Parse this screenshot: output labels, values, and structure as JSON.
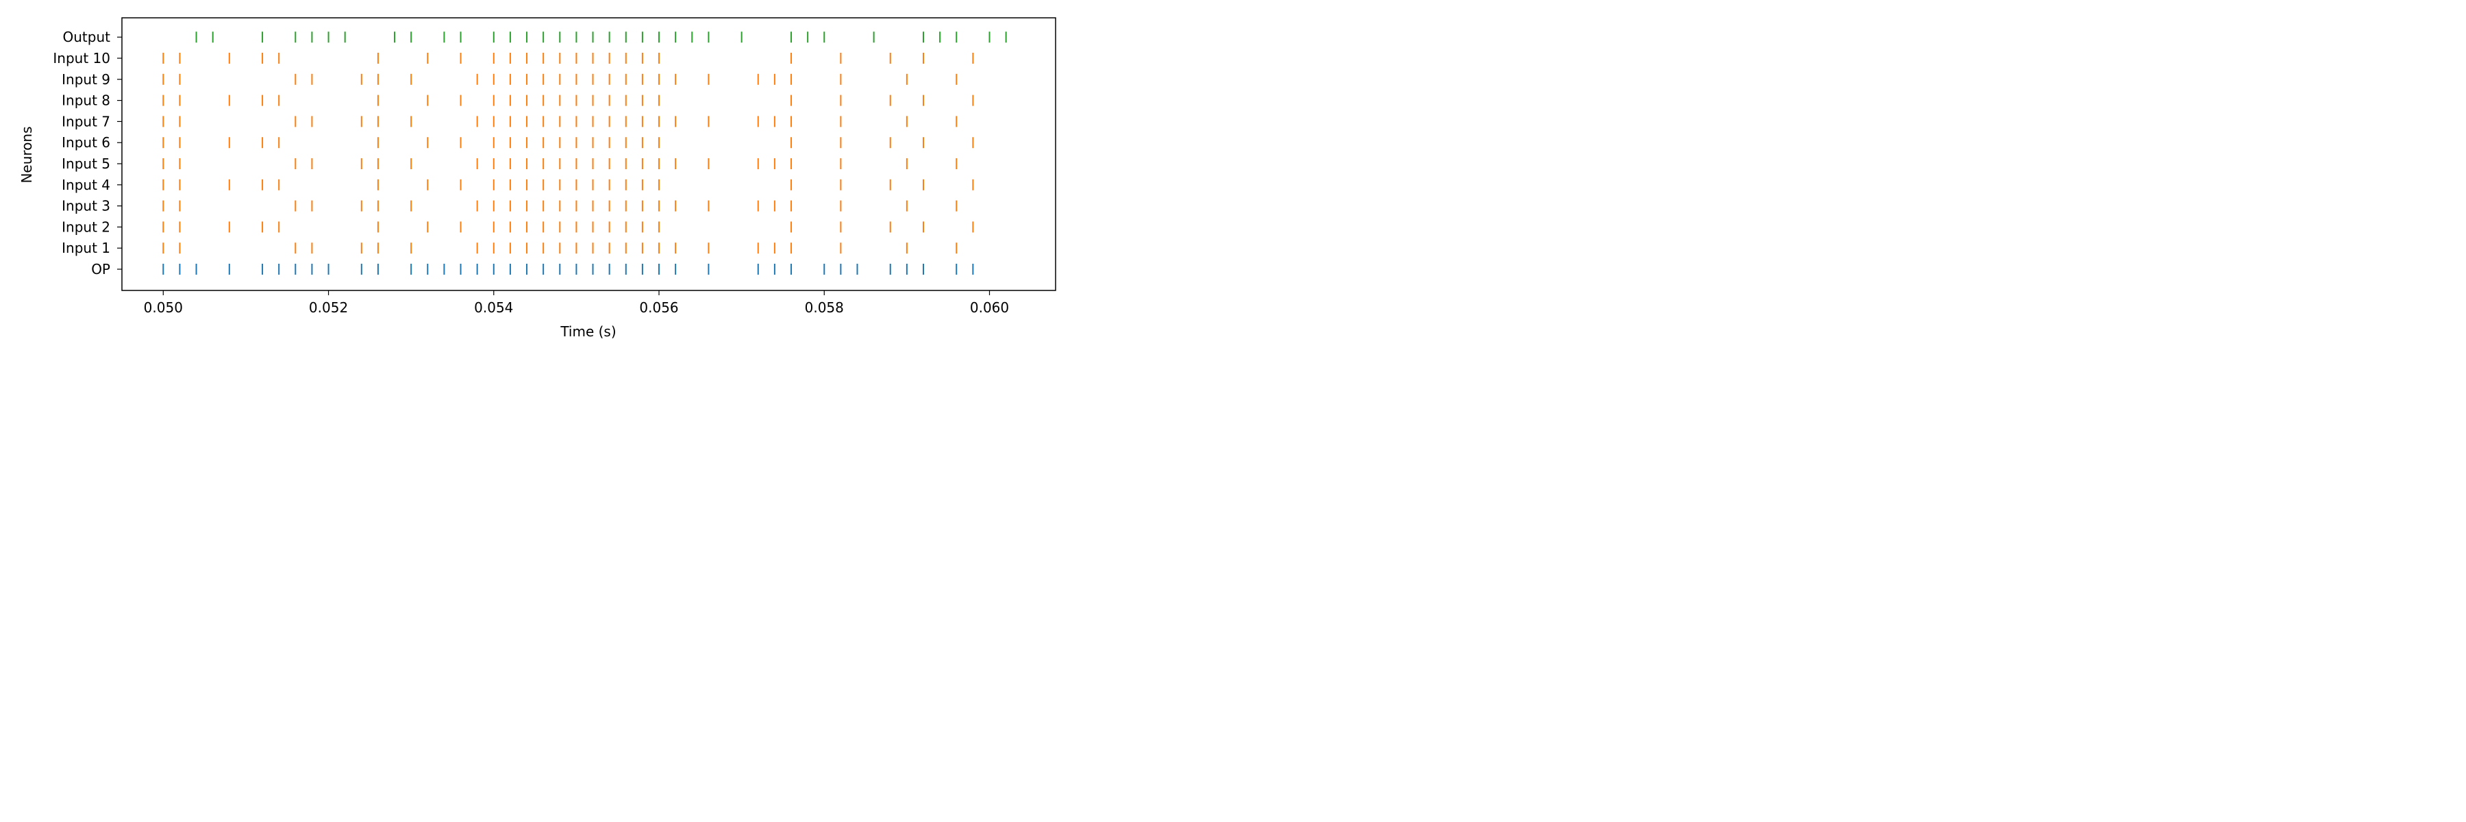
{
  "chart_data": {
    "type": "scatter",
    "subtype": "eventplot",
    "xlabel": "Time (s)",
    "ylabel": "Neurons",
    "xlim": [
      0.0495,
      0.0608
    ],
    "x_ticks": [
      "0.050",
      "0.052",
      "0.054",
      "0.056",
      "0.058",
      "0.060"
    ],
    "x_tick_values": [
      0.05,
      0.052,
      0.054,
      0.056,
      0.058,
      0.06
    ],
    "grid": false,
    "rows_bottom_to_top": [
      "OP",
      "Input 1",
      "Input 2",
      "Input 3",
      "Input 4",
      "Input 5",
      "Input 6",
      "Input 7",
      "Input 8",
      "Input 9",
      "Input 10",
      "Output"
    ],
    "colors": {
      "OP": "#1f77b4",
      "Input": "#ff7f0e",
      "Output": "#2ca02c"
    },
    "series": [
      {
        "name": "OP",
        "color": "#1f77b4",
        "values": [
          0.05,
          0.0502,
          0.0504,
          0.0508,
          0.0512,
          0.0514,
          0.0516,
          0.0518,
          0.052,
          0.0524,
          0.0526,
          0.053,
          0.0532,
          0.0534,
          0.0536,
          0.0538,
          0.054,
          0.0542,
          0.0544,
          0.0546,
          0.0548,
          0.055,
          0.0552,
          0.0554,
          0.0556,
          0.0558,
          0.056,
          0.0562,
          0.0566,
          0.0572,
          0.0574,
          0.0576,
          0.058,
          0.0582,
          0.0584,
          0.0588,
          0.059,
          0.0592,
          0.0596,
          0.0598
        ]
      },
      {
        "name": "Input 1",
        "color": "#ff7f0e",
        "values": [
          0.05,
          0.0502,
          0.0516,
          0.0518,
          0.0524,
          0.0526,
          0.053,
          0.0538,
          0.054,
          0.0542,
          0.0544,
          0.0546,
          0.0548,
          0.055,
          0.0552,
          0.0554,
          0.0556,
          0.0558,
          0.056,
          0.0562,
          0.0566,
          0.0572,
          0.0574,
          0.0576,
          0.0582,
          0.059,
          0.0596
        ]
      },
      {
        "name": "Input 2",
        "color": "#ff7f0e",
        "values": [
          0.05,
          0.0502,
          0.0508,
          0.0512,
          0.0514,
          0.0526,
          0.0532,
          0.0536,
          0.054,
          0.0542,
          0.0544,
          0.0546,
          0.0548,
          0.055,
          0.0552,
          0.0554,
          0.0556,
          0.0558,
          0.056,
          0.0576,
          0.0582,
          0.0588,
          0.0592,
          0.0598
        ]
      },
      {
        "name": "Input 3",
        "color": "#ff7f0e",
        "values": [
          0.05,
          0.0502,
          0.0516,
          0.0518,
          0.0524,
          0.0526,
          0.053,
          0.0538,
          0.054,
          0.0542,
          0.0544,
          0.0546,
          0.0548,
          0.055,
          0.0552,
          0.0554,
          0.0556,
          0.0558,
          0.056,
          0.0562,
          0.0566,
          0.0572,
          0.0574,
          0.0576,
          0.0582,
          0.059,
          0.0596
        ]
      },
      {
        "name": "Input 4",
        "color": "#ff7f0e",
        "values": [
          0.05,
          0.0502,
          0.0508,
          0.0512,
          0.0514,
          0.0526,
          0.0532,
          0.0536,
          0.054,
          0.0542,
          0.0544,
          0.0546,
          0.0548,
          0.055,
          0.0552,
          0.0554,
          0.0556,
          0.0558,
          0.056,
          0.0576,
          0.0582,
          0.0588,
          0.0592,
          0.0598
        ]
      },
      {
        "name": "Input 5",
        "color": "#ff7f0e",
        "values": [
          0.05,
          0.0502,
          0.0516,
          0.0518,
          0.0524,
          0.0526,
          0.053,
          0.0538,
          0.054,
          0.0542,
          0.0544,
          0.0546,
          0.0548,
          0.055,
          0.0552,
          0.0554,
          0.0556,
          0.0558,
          0.056,
          0.0562,
          0.0566,
          0.0572,
          0.0574,
          0.0576,
          0.0582,
          0.059,
          0.0596
        ]
      },
      {
        "name": "Input 6",
        "color": "#ff7f0e",
        "values": [
          0.05,
          0.0502,
          0.0508,
          0.0512,
          0.0514,
          0.0526,
          0.0532,
          0.0536,
          0.054,
          0.0542,
          0.0544,
          0.0546,
          0.0548,
          0.055,
          0.0552,
          0.0554,
          0.0556,
          0.0558,
          0.056,
          0.0576,
          0.0582,
          0.0588,
          0.0592,
          0.0598
        ]
      },
      {
        "name": "Input 7",
        "color": "#ff7f0e",
        "values": [
          0.05,
          0.0502,
          0.0516,
          0.0518,
          0.0524,
          0.0526,
          0.053,
          0.0538,
          0.054,
          0.0542,
          0.0544,
          0.0546,
          0.0548,
          0.055,
          0.0552,
          0.0554,
          0.0556,
          0.0558,
          0.056,
          0.0562,
          0.0566,
          0.0572,
          0.0574,
          0.0576,
          0.0582,
          0.059,
          0.0596
        ]
      },
      {
        "name": "Input 8",
        "color": "#ff7f0e",
        "values": [
          0.05,
          0.0502,
          0.0508,
          0.0512,
          0.0514,
          0.0526,
          0.0532,
          0.0536,
          0.054,
          0.0542,
          0.0544,
          0.0546,
          0.0548,
          0.055,
          0.0552,
          0.0554,
          0.0556,
          0.0558,
          0.056,
          0.0576,
          0.0582,
          0.0588,
          0.0592,
          0.0598
        ]
      },
      {
        "name": "Input 9",
        "color": "#ff7f0e",
        "values": [
          0.05,
          0.0502,
          0.0516,
          0.0518,
          0.0524,
          0.0526,
          0.053,
          0.0538,
          0.054,
          0.0542,
          0.0544,
          0.0546,
          0.0548,
          0.055,
          0.0552,
          0.0554,
          0.0556,
          0.0558,
          0.056,
          0.0562,
          0.0566,
          0.0572,
          0.0574,
          0.0576,
          0.0582,
          0.059,
          0.0596
        ]
      },
      {
        "name": "Input 10",
        "color": "#ff7f0e",
        "values": [
          0.05,
          0.0502,
          0.0508,
          0.0512,
          0.0514,
          0.0526,
          0.0532,
          0.0536,
          0.054,
          0.0542,
          0.0544,
          0.0546,
          0.0548,
          0.055,
          0.0552,
          0.0554,
          0.0556,
          0.0558,
          0.056,
          0.0576,
          0.0582,
          0.0588,
          0.0592,
          0.0598
        ]
      },
      {
        "name": "Output",
        "color": "#2ca02c",
        "values": [
          0.0504,
          0.0506,
          0.0512,
          0.0516,
          0.0518,
          0.052,
          0.0522,
          0.0528,
          0.053,
          0.0534,
          0.0536,
          0.054,
          0.0542,
          0.0544,
          0.0546,
          0.0548,
          0.055,
          0.0552,
          0.0554,
          0.0556,
          0.0558,
          0.056,
          0.0562,
          0.0564,
          0.0566,
          0.057,
          0.0576,
          0.0578,
          0.058,
          0.0586,
          0.0592,
          0.0594,
          0.0596,
          0.06,
          0.0602
        ]
      }
    ]
  }
}
